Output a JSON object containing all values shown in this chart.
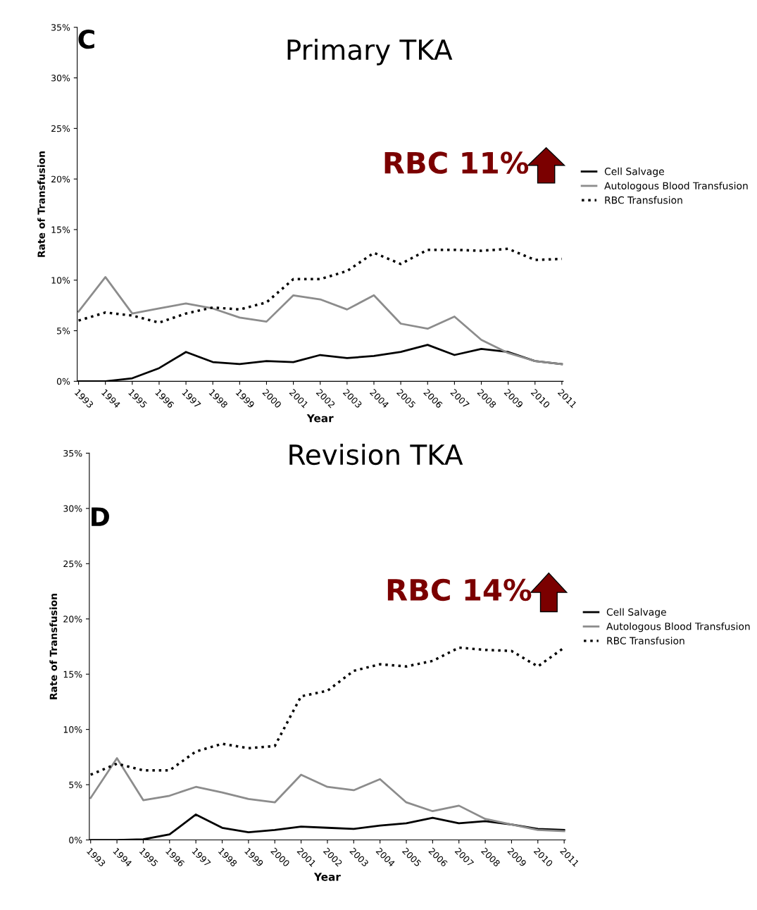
{
  "chart_data": [
    {
      "type": "line",
      "title": "Primary TKA",
      "xlabel": "Year",
      "ylabel": "Rate of Transfusion",
      "categories": [
        "1993",
        "1994",
        "1995",
        "1996",
        "1997",
        "1998",
        "1999",
        "2000",
        "2001",
        "2002",
        "2003",
        "2004",
        "2005",
        "2006",
        "2007",
        "2008",
        "2009",
        "2010",
        "2011"
      ],
      "series": [
        {
          "name": "Cell Salvage",
          "color": "#000000",
          "line_style": "solid",
          "values": [
            0,
            0,
            0.3,
            1.3,
            2.9,
            1.9,
            1.7,
            2.0,
            1.9,
            2.6,
            2.3,
            2.5,
            2.9,
            3.6,
            2.6,
            3.2,
            2.9,
            2.0,
            1.7
          ]
        },
        {
          "name": "Autologous Blood Transfusion",
          "color": "#8c8c8c",
          "line_style": "solid",
          "values": [
            6.9,
            10.3,
            6.7,
            7.2,
            7.7,
            7.2,
            6.3,
            5.9,
            8.5,
            8.1,
            7.1,
            8.5,
            5.7,
            5.2,
            6.4,
            4.1,
            2.8,
            2.0,
            1.7
          ]
        },
        {
          "name": "RBC Transfusion",
          "color": "#000000",
          "line_style": "dotted",
          "values": [
            6.0,
            6.8,
            6.5,
            5.8,
            6.7,
            7.3,
            7.1,
            7.8,
            10.1,
            10.1,
            10.9,
            12.7,
            11.6,
            13.0,
            13.0,
            12.9,
            13.1,
            12.0,
            12.1
          ]
        }
      ],
      "ylim": [
        0,
        35
      ],
      "yticks": [
        {
          "value": 0,
          "label": "0%"
        },
        {
          "value": 5,
          "label": "5%"
        },
        {
          "value": 10,
          "label": "10%"
        },
        {
          "value": 15,
          "label": "15%"
        },
        {
          "value": 20,
          "label": "20%"
        },
        {
          "value": 25,
          "label": "25%"
        },
        {
          "value": 30,
          "label": "30%"
        },
        {
          "value": 35,
          "label": "35%"
        }
      ],
      "annotations": [
        "C",
        "RBC 11%"
      ],
      "legend": "right",
      "grid": false,
      "marker": "none"
    },
    {
      "type": "line",
      "title": "Revision TKA",
      "xlabel": "Year",
      "ylabel": "Rate of Transfusion",
      "categories": [
        "1993",
        "1994",
        "1995",
        "1996",
        "1997",
        "1998",
        "1999",
        "2000",
        "2001",
        "2002",
        "2003",
        "2004",
        "2005",
        "2006",
        "2007",
        "2008",
        "2009",
        "2010",
        "2011"
      ],
      "series": [
        {
          "name": "Cell Salvage",
          "color": "#000000",
          "line_style": "solid",
          "values": [
            0,
            0,
            0.05,
            0.5,
            2.3,
            1.1,
            0.7,
            0.9,
            1.2,
            1.1,
            1.0,
            1.3,
            1.5,
            2.0,
            1.5,
            1.7,
            1.4,
            1.0,
            0.9
          ]
        },
        {
          "name": "Autologous Blood Transfusion",
          "color": "#8c8c8c",
          "line_style": "solid",
          "values": [
            3.8,
            7.4,
            3.6,
            4.0,
            4.8,
            4.3,
            3.7,
            3.4,
            5.9,
            4.8,
            4.5,
            5.5,
            3.4,
            2.6,
            3.1,
            1.9,
            1.4,
            0.9,
            0.8
          ]
        },
        {
          "name": "RBC Transfusion",
          "color": "#000000",
          "line_style": "dotted",
          "values": [
            5.9,
            6.9,
            6.3,
            6.3,
            8.0,
            8.7,
            8.3,
            8.5,
            13.0,
            13.5,
            15.3,
            15.9,
            15.7,
            16.2,
            17.4,
            17.2,
            17.1,
            15.7,
            17.4
          ]
        }
      ],
      "ylim": [
        0,
        35
      ],
      "yticks": [
        {
          "value": 0,
          "label": "0%"
        },
        {
          "value": 5,
          "label": "5%"
        },
        {
          "value": 10,
          "label": "10%"
        },
        {
          "value": 15,
          "label": "15%"
        },
        {
          "value": 20,
          "label": "20%"
        },
        {
          "value": 25,
          "label": "25%"
        },
        {
          "value": 30,
          "label": "30%"
        },
        {
          "value": 35,
          "label": "35%"
        }
      ],
      "annotations": [
        "D",
        "RBC 14%"
      ],
      "legend": "right",
      "grid": false,
      "marker": "none"
    }
  ]
}
